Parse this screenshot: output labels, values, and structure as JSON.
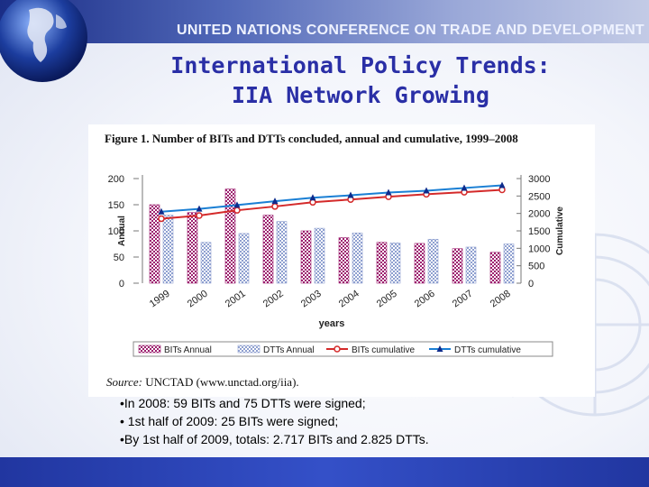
{
  "header": {
    "organization": "UNITED NATIONS CONFERENCE ON TRADE AND DEVELOPMENT",
    "title_line1": "International Policy Trends:",
    "title_line2": "IIA Network Growing"
  },
  "figure": {
    "source_label": "Source:",
    "source_text": "UNCTAD (www.unctad.org/iia)."
  },
  "chart_data": {
    "type": "bar",
    "title": "Figure 1. Number of BITs and DTTs concluded, annual and cumulative, 1999–2008",
    "categories": [
      "1999",
      "2000",
      "2001",
      "2002",
      "2003",
      "2004",
      "2005",
      "2006",
      "2007",
      "2008"
    ],
    "xlabel": "years",
    "ylabel": "Annual",
    "y2label": "Cumulative",
    "ylim": [
      0,
      200
    ],
    "y2lim": [
      0,
      3000
    ],
    "yticks": [
      "0",
      "50",
      "100",
      "150",
      "200"
    ],
    "y2ticks": [
      "0",
      "500",
      "1000",
      "1500",
      "2000",
      "2500",
      "3000"
    ],
    "series": [
      {
        "name": "BITs Annual",
        "kind": "bar",
        "axis": "left",
        "color": "#9c1f6e",
        "values": [
          150,
          135,
          180,
          130,
          100,
          87,
          78,
          76,
          66,
          59
        ]
      },
      {
        "name": "DTTs Annual",
        "kind": "bar",
        "axis": "left",
        "color": "#8fa0d0",
        "values": [
          130,
          78,
          95,
          118,
          105,
          96,
          77,
          84,
          69,
          75
        ]
      },
      {
        "name": "BITs cumulative",
        "kind": "line",
        "axis": "right",
        "color": "#d42a2a",
        "values": [
          1850,
          1940,
          2090,
          2200,
          2320,
          2400,
          2480,
          2550,
          2610,
          2676
        ]
      },
      {
        "name": "DTTs cumulative",
        "kind": "line",
        "axis": "right",
        "color": "#1a7fd4",
        "values": [
          2050,
          2130,
          2240,
          2350,
          2450,
          2520,
          2600,
          2650,
          2730,
          2805
        ]
      }
    ],
    "legend": [
      "BITs Annual",
      "DTTs Annual",
      "BITs cumulative",
      "DTTs cumulative"
    ],
    "grid": false,
    "legend_position": "bottom"
  },
  "bullets": [
    "•In 2008:  59 BITs and 75 DTTs were signed;",
    "• 1st half of 2009: 25 BITs were signed;",
    "•By 1st half of 2009, totals: 2.717 BITs and  2.825 DTTs."
  ]
}
